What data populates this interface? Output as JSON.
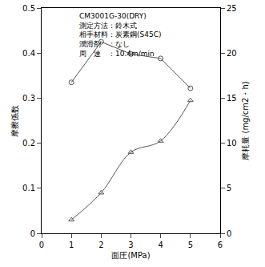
{
  "chart_data": {
    "type": "line",
    "annotations": [
      "CM3001G-30(DRY)",
      "測定方法：鈴木式",
      "相手材料：炭素鋼(S45C)",
      "潤滑剤　：なし",
      "周　速　：10.4m/min"
    ],
    "x_label": "面圧(MPa)",
    "y_label": "摩擦係数",
    "y2_label": "摩耗量 (mg/cm2・h)",
    "x": [
      1,
      2,
      3,
      4,
      5
    ],
    "series": [
      {
        "name": "摩擦係数",
        "color": "#555555",
        "marker": "circle-open",
        "line_style": "solid",
        "values": [
          0.335,
          0.425,
          0.398,
          0.388,
          0.322
        ]
      },
      {
        "name": "摩耗量",
        "axis": "y2",
        "color": "#555555",
        "marker": "triangle-up-open",
        "line_style": "smooth",
        "values": [
          1.5,
          4.5,
          9,
          10.25,
          14.75
        ]
      }
    ],
    "xlim": [
      0,
      6
    ],
    "xticks": [
      0,
      1,
      2,
      3,
      4,
      5,
      6
    ],
    "ylim": [
      0,
      0.5
    ],
    "yticks": [
      0,
      0.1,
      0.2,
      0.3,
      0.4,
      0.5
    ],
    "y2lim": [
      0,
      25
    ],
    "y2ticks": [
      0,
      5,
      10,
      15,
      20,
      25
    ],
    "grid": false
  }
}
